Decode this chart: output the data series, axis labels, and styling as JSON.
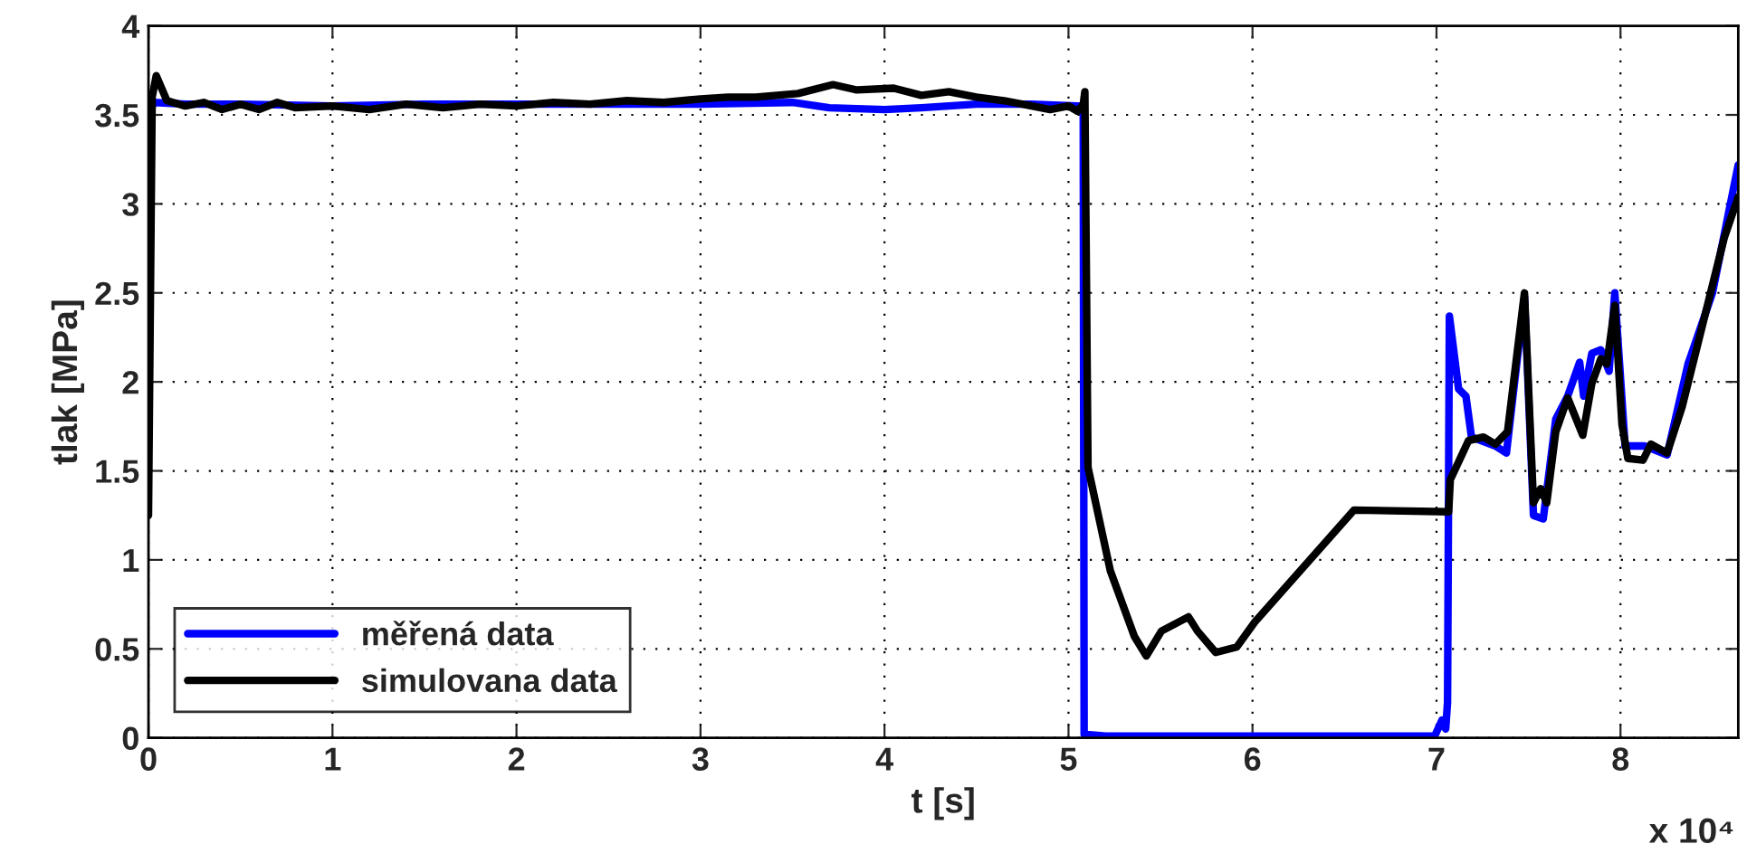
{
  "chart_data": {
    "type": "line",
    "xlabel": "t [s]",
    "ylabel": "tlak [MPa]",
    "xlim": [
      0,
      8.64
    ],
    "ylim": [
      0,
      4
    ],
    "xticks": [
      0,
      1,
      2,
      3,
      4,
      5,
      6,
      7,
      8
    ],
    "yticks": [
      0,
      0.5,
      1,
      1.5,
      2,
      2.5,
      3,
      3.5,
      4
    ],
    "grid": true,
    "legend": "bottom left",
    "line_style": "solid",
    "marker": "none",
    "annotations": [
      "x 10⁴"
    ],
    "series": [
      {
        "name": "měřená data",
        "color": "#0000ff",
        "x": [
          0,
          0.03,
          0.2,
          0.5,
          1.0,
          1.5,
          2.0,
          2.5,
          3.0,
          3.5,
          3.7,
          4.0,
          4.2,
          4.5,
          4.8,
          5.05,
          5.08,
          5.085,
          5.2,
          6.0,
          6.99,
          7.03,
          7.05,
          7.06,
          7.07,
          7.12,
          7.16,
          7.19,
          7.32,
          7.38,
          7.478,
          7.527,
          7.58,
          7.648,
          7.713,
          7.778,
          7.8,
          7.844,
          7.893,
          7.938,
          7.969,
          8.025,
          8.13,
          8.253,
          8.367,
          8.5,
          8.64
        ],
        "values": [
          3.5,
          3.57,
          3.56,
          3.56,
          3.55,
          3.56,
          3.56,
          3.56,
          3.56,
          3.57,
          3.54,
          3.53,
          3.54,
          3.56,
          3.56,
          3.55,
          3.55,
          0.02,
          0.01,
          0.01,
          0.01,
          0.1,
          0.05,
          0.2,
          2.37,
          1.96,
          1.92,
          1.69,
          1.64,
          1.6,
          2.48,
          1.25,
          1.23,
          1.79,
          1.92,
          2.11,
          1.92,
          2.16,
          2.18,
          2.06,
          2.5,
          1.64,
          1.64,
          1.59,
          2.1,
          2.5,
          3.22
        ]
      },
      {
        "name": "simulovana data",
        "color": "#000000",
        "x": [
          0,
          0.02,
          0.042,
          0.1,
          0.2,
          0.3,
          0.4,
          0.5,
          0.6,
          0.7,
          0.8,
          1.0,
          1.2,
          1.4,
          1.6,
          1.8,
          2.0,
          2.2,
          2.4,
          2.6,
          2.8,
          3.0,
          3.15,
          3.3,
          3.53,
          3.72,
          3.85,
          4.05,
          4.2,
          4.35,
          4.5,
          4.65,
          4.8,
          4.9,
          5.0,
          5.05,
          5.08,
          5.089,
          5.106,
          5.227,
          5.358,
          5.423,
          5.505,
          5.652,
          5.701,
          5.8,
          5.914,
          6.012,
          6.552,
          7.066,
          7.075,
          7.174,
          7.255,
          7.32,
          7.386,
          7.478,
          7.527,
          7.566,
          7.599,
          7.648,
          7.713,
          7.795,
          7.844,
          7.893,
          7.926,
          7.969,
          8.008,
          8.04,
          8.122,
          8.165,
          8.253,
          8.335,
          8.482,
          8.564,
          8.64
        ],
        "values": [
          1.25,
          3.6,
          3.72,
          3.58,
          3.55,
          3.57,
          3.53,
          3.56,
          3.53,
          3.57,
          3.54,
          3.55,
          3.53,
          3.56,
          3.54,
          3.56,
          3.55,
          3.57,
          3.56,
          3.58,
          3.57,
          3.59,
          3.6,
          3.6,
          3.62,
          3.67,
          3.64,
          3.65,
          3.61,
          3.63,
          3.6,
          3.58,
          3.55,
          3.53,
          3.55,
          3.52,
          3.56,
          3.63,
          1.52,
          0.94,
          0.57,
          0.46,
          0.6,
          0.68,
          0.6,
          0.48,
          0.51,
          0.65,
          1.28,
          1.27,
          1.45,
          1.67,
          1.69,
          1.65,
          1.72,
          2.5,
          1.32,
          1.4,
          1.32,
          1.72,
          1.91,
          1.7,
          1.99,
          2.13,
          2.1,
          2.43,
          1.76,
          1.57,
          1.56,
          1.65,
          1.6,
          1.86,
          2.47,
          2.81,
          3.04
        ]
      }
    ]
  }
}
